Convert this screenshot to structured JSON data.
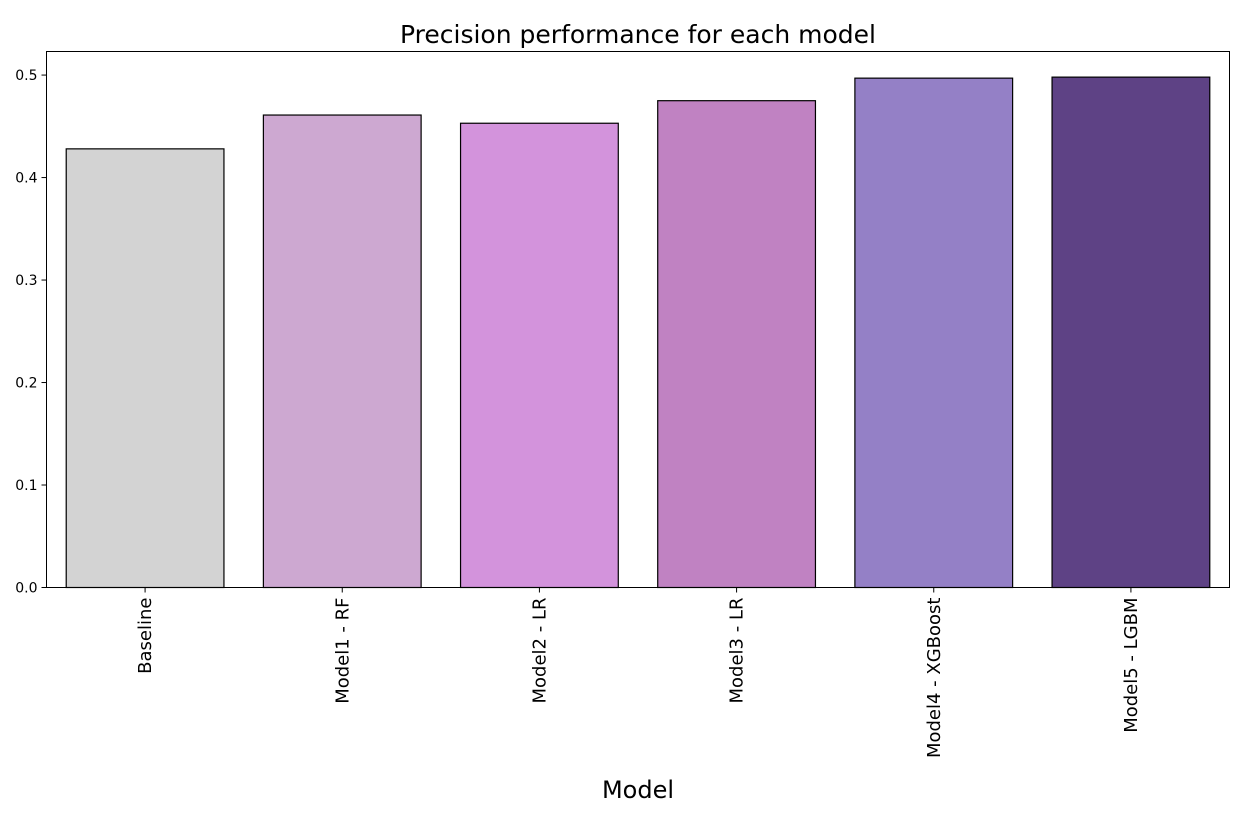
{
  "chart_data": {
    "type": "bar",
    "title": "Precision performance for each model",
    "xlabel": "Model",
    "ylabel": "",
    "ylim": [
      0,
      0.523
    ],
    "yticks": [
      0.0,
      0.1,
      0.2,
      0.3,
      0.4,
      0.5
    ],
    "ytick_labels": [
      "0.0",
      "0.1",
      "0.2",
      "0.3",
      "0.4",
      "0.5"
    ],
    "categories": [
      "Baseline",
      "Model1 - RF",
      "Model2 - LR",
      "Model3 - LR",
      "Model4 - XGBoost",
      "Model5 - LGBM"
    ],
    "values": [
      0.428,
      0.461,
      0.453,
      0.475,
      0.497,
      0.498
    ],
    "colors": [
      "#d3d3d3",
      "#cda8d1",
      "#d393dc",
      "#c082c2",
      "#9480c6",
      "#5e4285"
    ],
    "edge_color": "#000000",
    "grid": false,
    "legend": "none"
  }
}
